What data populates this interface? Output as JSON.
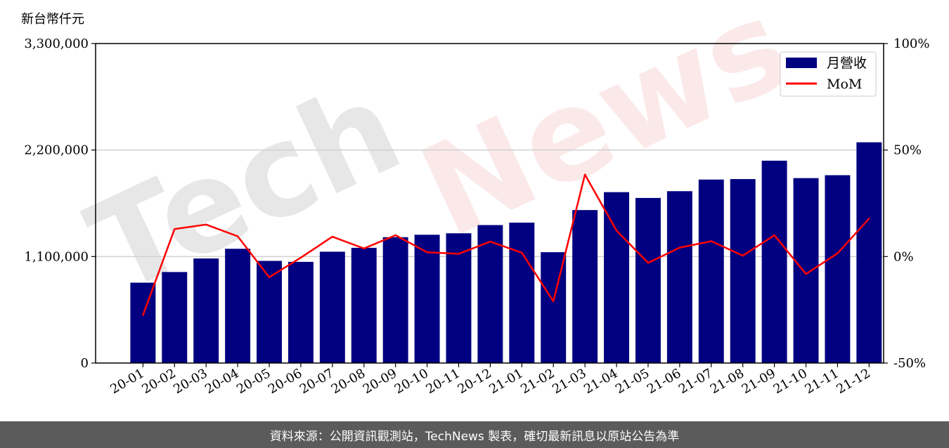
{
  "chart_data": {
    "type": "bar",
    "y_unit_label": "新台幣仟元",
    "categories": [
      "20-01",
      "20-02",
      "20-03",
      "20-04",
      "20-05",
      "20-06",
      "20-07",
      "20-08",
      "20-09",
      "20-10",
      "20-11",
      "20-12",
      "21-01",
      "21-02",
      "21-03",
      "21-04",
      "21-05",
      "21-06",
      "21-07",
      "21-08",
      "21-09",
      "21-10",
      "21-11",
      "21-12"
    ],
    "series": [
      {
        "name": "月營收",
        "axis": "left",
        "chart_type": "bar",
        "color": "#000080",
        "values": [
          830000,
          940000,
          1080000,
          1180000,
          1055000,
          1045000,
          1150000,
          1190000,
          1300000,
          1325000,
          1340000,
          1425000,
          1450000,
          1145000,
          1580000,
          1765000,
          1705000,
          1775000,
          1895000,
          1900000,
          2090000,
          1910000,
          1940000,
          2280000
        ]
      },
      {
        "name": "MoM",
        "axis": "right",
        "chart_type": "line",
        "color": "#ff0000",
        "values": [
          -27.5,
          12.9,
          15.0,
          9.5,
          -9.7,
          -0.5,
          9.3,
          3.8,
          10.0,
          2.0,
          1.3,
          7.0,
          1.8,
          -21.0,
          38.5,
          12.2,
          -3.0,
          4.2,
          7.2,
          0.4,
          10.0,
          -8.2,
          1.5,
          17.8
        ]
      }
    ],
    "y_left": {
      "lim": [
        0,
        3300000
      ],
      "ticks": [
        0,
        1100000,
        2200000,
        3300000
      ],
      "tick_labels": [
        "0",
        "1,100,000",
        "2,200,000",
        "3,300,000"
      ]
    },
    "y_right": {
      "lim": [
        -50,
        100
      ],
      "ticks": [
        -50,
        0,
        50,
        100
      ],
      "tick_labels": [
        "-50%",
        "0%",
        "50%",
        "100%"
      ]
    },
    "grid": "horizontal",
    "legend_position": "top-right",
    "watermark": "TechNews"
  },
  "footer": {
    "source_text": "資料來源：公開資訊觀測站，TechNews 製表，確切最新訊息以原站公告為準"
  }
}
